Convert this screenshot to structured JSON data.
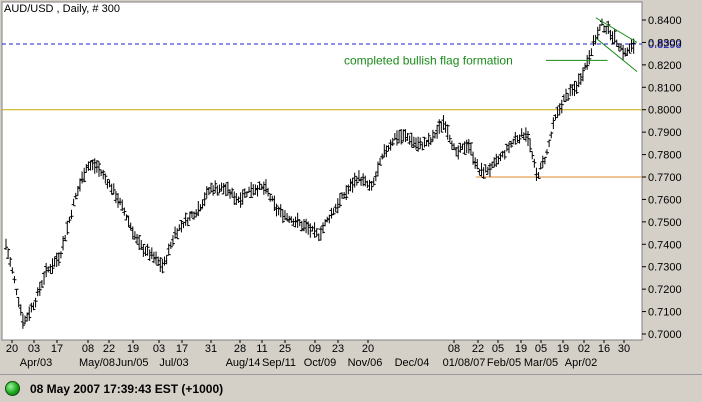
{
  "window": {
    "title": "AUD/USD , Daily, # 300"
  },
  "status": {
    "text": "08 May 2007 17:39:43 EST (+1000)",
    "indicator_color": "#22aa22"
  },
  "chart_data": {
    "type": "ohlc-bar",
    "title": "AUD/USD , Daily, # 300",
    "xlabel": "",
    "ylabel": "",
    "ylim": [
      0.695,
      0.845
    ],
    "y_ticks": [
      0.7,
      0.71,
      0.72,
      0.73,
      0.74,
      0.75,
      0.76,
      0.77,
      0.78,
      0.79,
      0.8,
      0.81,
      0.82,
      0.83,
      0.84
    ],
    "y_tick_labels": [
      "0.7000",
      "0.7100",
      "0.7200",
      "0.7300",
      "0.7400",
      "0.7500",
      "0.7600",
      "0.7700",
      "0.7800",
      "0.7900",
      "0.8000",
      "0.8100",
      "0.8200",
      "0.8300",
      "0.8400"
    ],
    "x_day_labels": [
      "20",
      "03",
      "17",
      "08",
      "22",
      "19",
      "03",
      "17",
      "31",
      "28",
      "11",
      "25",
      "09",
      "23",
      "20",
      "08",
      "22",
      "05",
      "19",
      "05",
      "19",
      "02",
      "16",
      "30"
    ],
    "x_month_labels": [
      "Apr/03",
      "May/08",
      "Jun/05",
      "Jul/03",
      "Aug/14",
      "Sep/11",
      "Oct/09",
      "Nov/06",
      "Dec/04",
      "01/08/07",
      "Feb/05",
      "Mar/05",
      "Apr/02"
    ],
    "price_path": [
      [
        0,
        0.74
      ],
      [
        8,
        0.725
      ],
      [
        18,
        0.705
      ],
      [
        30,
        0.715
      ],
      [
        40,
        0.727
      ],
      [
        55,
        0.735
      ],
      [
        70,
        0.76
      ],
      [
        82,
        0.775
      ],
      [
        92,
        0.775
      ],
      [
        108,
        0.765
      ],
      [
        120,
        0.755
      ],
      [
        135,
        0.74
      ],
      [
        148,
        0.735
      ],
      [
        160,
        0.73
      ],
      [
        172,
        0.745
      ],
      [
        182,
        0.75
      ],
      [
        196,
        0.756
      ],
      [
        208,
        0.765
      ],
      [
        222,
        0.765
      ],
      [
        236,
        0.76
      ],
      [
        250,
        0.765
      ],
      [
        264,
        0.765
      ],
      [
        276,
        0.755
      ],
      [
        288,
        0.752
      ],
      [
        304,
        0.748
      ],
      [
        318,
        0.744
      ],
      [
        330,
        0.753
      ],
      [
        344,
        0.762
      ],
      [
        358,
        0.77
      ],
      [
        372,
        0.765
      ],
      [
        384,
        0.78
      ],
      [
        396,
        0.788
      ],
      [
        408,
        0.788
      ],
      [
        420,
        0.784
      ],
      [
        432,
        0.786
      ],
      [
        446,
        0.795
      ],
      [
        458,
        0.78
      ],
      [
        470,
        0.785
      ],
      [
        482,
        0.772
      ],
      [
        494,
        0.774
      ],
      [
        506,
        0.78
      ],
      [
        518,
        0.787
      ],
      [
        530,
        0.79
      ],
      [
        540,
        0.77
      ],
      [
        550,
        0.78
      ],
      [
        558,
        0.795
      ],
      [
        568,
        0.805
      ],
      [
        580,
        0.81
      ],
      [
        590,
        0.82
      ],
      [
        598,
        0.83
      ],
      [
        606,
        0.838
      ],
      [
        614,
        0.835
      ],
      [
        622,
        0.83
      ],
      [
        630,
        0.825
      ],
      [
        640,
        0.8293
      ]
    ],
    "horizontal_lines": [
      {
        "name": "current-price",
        "value": 0.8293,
        "color": "#2222cc",
        "style": "dashed",
        "label": "0.8293"
      },
      {
        "name": "support-08000",
        "value": 0.8,
        "color": "#c8a800",
        "style": "solid"
      },
      {
        "name": "support-07700",
        "value": 0.77,
        "color": "#e08a2a",
        "style": "solid",
        "x_start_day": 478
      }
    ],
    "flag_channel": {
      "color": "#1a8a1a",
      "upper": [
        [
          600,
          0.841
        ],
        [
          642,
          0.83
        ]
      ],
      "lower": [
        [
          600,
          0.832
        ],
        [
          642,
          0.817
        ]
      ]
    },
    "annotations": [
      {
        "text": "completed bullish flag formation",
        "color": "#1a8a1a",
        "arrow_to_day": 612,
        "arrow_to_value": 0.822
      }
    ]
  }
}
